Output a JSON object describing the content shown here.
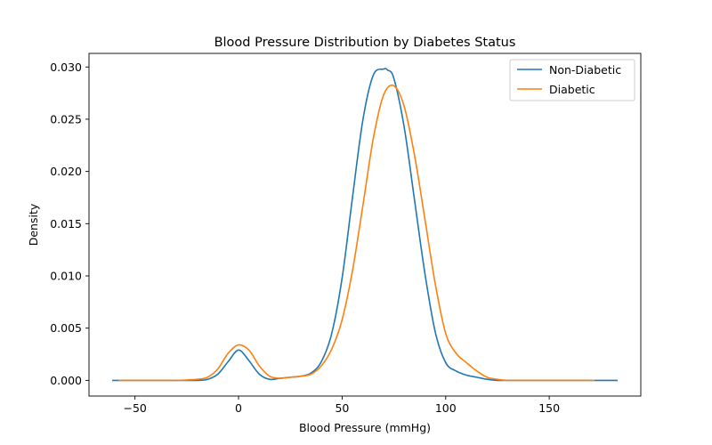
{
  "chart_data": {
    "type": "line",
    "title": "Blood Pressure Distribution by Diabetes Status",
    "xlabel": "Blood Pressure (mmHg)",
    "ylabel": "Density",
    "xlim": [
      -72.2,
      194.2
    ],
    "ylim": [
      -0.0015,
      0.0313
    ],
    "xticks": [
      -50,
      0,
      50,
      100,
      150
    ],
    "xtick_labels": [
      "−50",
      "0",
      "50",
      "100",
      "150"
    ],
    "yticks": [
      0.0,
      0.005,
      0.01,
      0.015,
      0.02,
      0.025,
      0.03
    ],
    "ytick_labels": [
      "0.000",
      "0.005",
      "0.010",
      "0.015",
      "0.020",
      "0.025",
      "0.030"
    ],
    "grid": false,
    "legend_position": "top-right",
    "series": [
      {
        "name": "Non-Diabetic",
        "color": "#1f77b4",
        "x": [
          -61,
          -50,
          -40,
          -30,
          -20,
          -15,
          -10,
          -5,
          0,
          5,
          10,
          15,
          20,
          25,
          30,
          35,
          40,
          45,
          50,
          55,
          60,
          65,
          70,
          72,
          75,
          80,
          85,
          90,
          95,
          100,
          105,
          110,
          115,
          120,
          125,
          130,
          140,
          150,
          160,
          170,
          183
        ],
        "y": [
          0.0,
          0.0,
          0.0,
          0.0,
          0.0,
          0.0001,
          0.0006,
          0.0018,
          0.0029,
          0.0019,
          0.0006,
          0.0001,
          0.0002,
          0.0003,
          0.0004,
          0.0007,
          0.0018,
          0.0045,
          0.0098,
          0.0175,
          0.0249,
          0.0292,
          0.0298,
          0.0297,
          0.0289,
          0.0242,
          0.0172,
          0.0102,
          0.0046,
          0.0017,
          0.0009,
          0.0005,
          0.0003,
          0.0001,
          0.0,
          0.0,
          0.0,
          0.0,
          0.0,
          0.0,
          0.0
        ]
      },
      {
        "name": "Diabetic",
        "color": "#ff7f0e",
        "x": [
          -58,
          -50,
          -40,
          -30,
          -20,
          -15,
          -10,
          -5,
          0,
          5,
          10,
          15,
          20,
          25,
          30,
          35,
          40,
          45,
          50,
          55,
          60,
          65,
          70,
          75,
          80,
          85,
          90,
          95,
          100,
          105,
          110,
          115,
          120,
          125,
          130,
          140,
          150,
          160,
          172
        ],
        "y": [
          0.0,
          0.0,
          0.0,
          0.0,
          0.0001,
          0.0003,
          0.0011,
          0.0026,
          0.0034,
          0.0029,
          0.0014,
          0.0004,
          0.0002,
          0.0003,
          0.0004,
          0.0006,
          0.0014,
          0.003,
          0.0058,
          0.0105,
          0.0167,
          0.0231,
          0.0273,
          0.0282,
          0.0262,
          0.0215,
          0.0154,
          0.0092,
          0.0045,
          0.0026,
          0.0017,
          0.0009,
          0.0003,
          0.0001,
          0.0,
          0.0,
          0.0,
          0.0,
          0.0
        ]
      }
    ]
  }
}
